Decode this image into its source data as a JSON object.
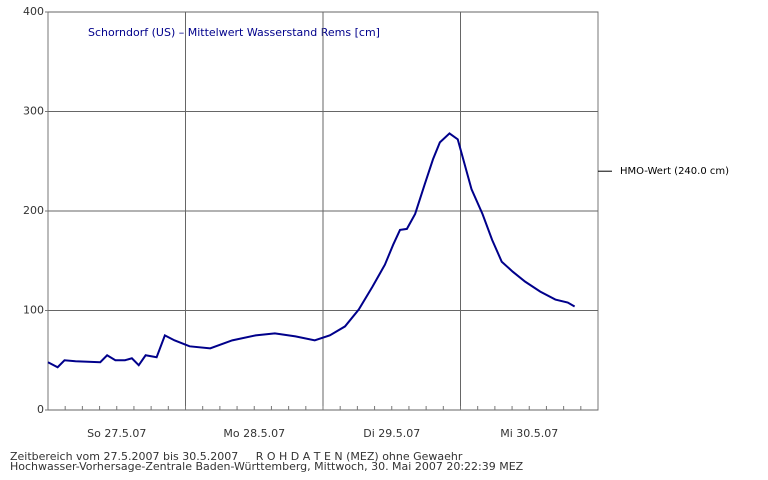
{
  "chart_data": {
    "type": "line",
    "title": "Schorndorf (US) – Mittelwert Wasserstand Rems [cm]",
    "footer": [
      "Zeitbereich vom 27.5.2007 bis 30.5.2007     R O H D A T E N (MEZ) ohne Gewaehr",
      "Hochwasser-Vorhersage-Zentrale Baden-Württemberg, Mittwoch, 30. Mai 2007 20:22:39 MEZ"
    ],
    "x": [
      0,
      0.07,
      0.12,
      0.2,
      0.38,
      0.43,
      0.49,
      0.56,
      0.61,
      0.66,
      0.71,
      0.79,
      0.85,
      0.92,
      1.03,
      1.18,
      1.34,
      1.51,
      1.65,
      1.8,
      1.94,
      2.05,
      2.16,
      2.26,
      2.36,
      2.45,
      2.51,
      2.56,
      2.61,
      2.67,
      2.74,
      2.8,
      2.85,
      2.92,
      2.98,
      3.03,
      3.08,
      3.16,
      3.23,
      3.3,
      3.38,
      3.47,
      3.58,
      3.69,
      3.78,
      3.83
    ],
    "series": [
      {
        "name": "Wasserstand",
        "color": "#00008b",
        "values": [
          48,
          43,
          50,
          49,
          48,
          55,
          50,
          50,
          52,
          45,
          55,
          53,
          75,
          70,
          64,
          62,
          70,
          75,
          77,
          74,
          70,
          75,
          84,
          101,
          124,
          146,
          166,
          181,
          182,
          197,
          227,
          252,
          269,
          278,
          272,
          247,
          222,
          197,
          171,
          149,
          139,
          129,
          119,
          111,
          108,
          104
        ]
      }
    ],
    "xlim": [
      0,
      4
    ],
    "xticks": [
      {
        "value": 0.5,
        "label": "So 27.5.07"
      },
      {
        "value": 1.5,
        "label": "Mo 28.5.07"
      },
      {
        "value": 2.5,
        "label": "Di 29.5.07"
      },
      {
        "value": 3.5,
        "label": "Mi 30.5.07"
      }
    ],
    "xgrid": [
      1,
      2,
      3
    ],
    "ylim": [
      0,
      400
    ],
    "yticks": [
      0,
      100,
      200,
      300,
      400
    ],
    "grid": true,
    "hmo": {
      "value": 240,
      "label": "HMO-Wert (240.0 cm)"
    }
  }
}
